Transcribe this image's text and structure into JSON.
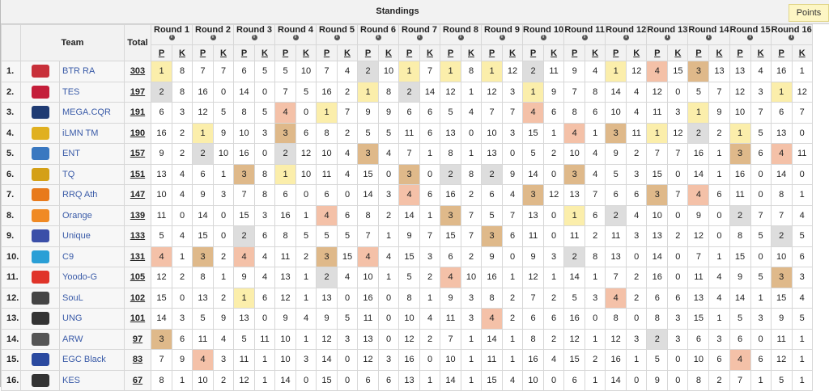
{
  "header": {
    "title": "Standings",
    "points_button": "Points"
  },
  "columns": {
    "team": "Team",
    "total": "Total",
    "p": "P",
    "k": "K",
    "info_icon": "i"
  },
  "rounds": [
    "Round 1",
    "Round 2",
    "Round 3",
    "Round 4",
    "Round 5",
    "Round 6",
    "Round 7",
    "Round 8",
    "Round 9",
    "Round 10",
    "Round 11",
    "Round 12",
    "Round 13",
    "Round 14",
    "Round 15",
    "Round 16"
  ],
  "place_colors": {
    "1": "#fbeeab",
    "2": "#dddddd",
    "3": "#dfb98a",
    "4": "#f4c1a8"
  },
  "teams": [
    {
      "rank": "1.",
      "name": "BTR RA",
      "logo": "btr-logo",
      "color": "#c8303a",
      "total": "303",
      "cells": [
        [
          1,
          8
        ],
        [
          7,
          7
        ],
        [
          6,
          5
        ],
        [
          5,
          10
        ],
        [
          7,
          4
        ],
        [
          2,
          10
        ],
        [
          1,
          7
        ],
        [
          1,
          8
        ],
        [
          1,
          12
        ],
        [
          2,
          11
        ],
        [
          9,
          4
        ],
        [
          1,
          12
        ],
        [
          4,
          15
        ],
        [
          3,
          13
        ],
        [
          13,
          4
        ],
        [
          16,
          1
        ]
      ]
    },
    {
      "rank": "2.",
      "name": "TES",
      "logo": "tes-logo",
      "color": "#c41e3a",
      "total": "197",
      "cells": [
        [
          2,
          8
        ],
        [
          16,
          0
        ],
        [
          14,
          0
        ],
        [
          7,
          5
        ],
        [
          16,
          2
        ],
        [
          1,
          8
        ],
        [
          2,
          14
        ],
        [
          12,
          1
        ],
        [
          12,
          3
        ],
        [
          1,
          9
        ],
        [
          7,
          8
        ],
        [
          14,
          4
        ],
        [
          12,
          0
        ],
        [
          5,
          7
        ],
        [
          12,
          3
        ],
        [
          1,
          12
        ]
      ]
    },
    {
      "rank": "3.",
      "name": "MEGA.CQR",
      "logo": "mega-logo",
      "color": "#1f3b73",
      "total": "191",
      "cells": [
        [
          6,
          3
        ],
        [
          12,
          5
        ],
        [
          8,
          5
        ],
        [
          4,
          0
        ],
        [
          1,
          7
        ],
        [
          9,
          9
        ],
        [
          6,
          6
        ],
        [
          5,
          4
        ],
        [
          7,
          7
        ],
        [
          4,
          6
        ],
        [
          8,
          6
        ],
        [
          10,
          4
        ],
        [
          11,
          3
        ],
        [
          1,
          9
        ],
        [
          10,
          7
        ],
        [
          6,
          7
        ]
      ]
    },
    {
      "rank": "4.",
      "name": "iLMN TM",
      "logo": "ilmn-logo",
      "color": "#e0b020",
      "total": "190",
      "cells": [
        [
          16,
          2
        ],
        [
          1,
          9
        ],
        [
          10,
          3
        ],
        [
          3,
          6
        ],
        [
          8,
          2
        ],
        [
          5,
          5
        ],
        [
          11,
          6
        ],
        [
          13,
          0
        ],
        [
          10,
          3
        ],
        [
          15,
          1
        ],
        [
          4,
          1
        ],
        [
          3,
          11
        ],
        [
          1,
          12
        ],
        [
          2,
          2
        ],
        [
          1,
          5
        ],
        [
          13,
          0
        ]
      ]
    },
    {
      "rank": "5.",
      "name": "ENT",
      "logo": "ent-logo",
      "color": "#3a78c0",
      "total": "157",
      "cells": [
        [
          9,
          2
        ],
        [
          2,
          10
        ],
        [
          16,
          0
        ],
        [
          2,
          12
        ],
        [
          10,
          4
        ],
        [
          3,
          4
        ],
        [
          7,
          1
        ],
        [
          8,
          1
        ],
        [
          13,
          0
        ],
        [
          5,
          2
        ],
        [
          10,
          4
        ],
        [
          9,
          2
        ],
        [
          7,
          7
        ],
        [
          16,
          1
        ],
        [
          3,
          6
        ],
        [
          4,
          11
        ]
      ]
    },
    {
      "rank": "6.",
      "name": "TQ",
      "logo": "tq-logo",
      "color": "#d4a017",
      "total": "151",
      "cells": [
        [
          13,
          4
        ],
        [
          6,
          1
        ],
        [
          3,
          8
        ],
        [
          1,
          10
        ],
        [
          11,
          4
        ],
        [
          15,
          0
        ],
        [
          3,
          0
        ],
        [
          2,
          8
        ],
        [
          2,
          9
        ],
        [
          14,
          0
        ],
        [
          3,
          4
        ],
        [
          5,
          3
        ],
        [
          15,
          0
        ],
        [
          14,
          1
        ],
        [
          16,
          0
        ],
        [
          14,
          0
        ]
      ]
    },
    {
      "rank": "7.",
      "name": "RRQ Ath",
      "logo": "rrq-logo",
      "color": "#e87a1c",
      "total": "147",
      "cells": [
        [
          10,
          4
        ],
        [
          9,
          3
        ],
        [
          7,
          8
        ],
        [
          6,
          0
        ],
        [
          6,
          0
        ],
        [
          14,
          3
        ],
        [
          4,
          6
        ],
        [
          16,
          2
        ],
        [
          6,
          4
        ],
        [
          3,
          12
        ],
        [
          13,
          7
        ],
        [
          6,
          6
        ],
        [
          3,
          7
        ],
        [
          4,
          6
        ],
        [
          11,
          0
        ],
        [
          8,
          1
        ]
      ]
    },
    {
      "rank": "8.",
      "name": "Orange",
      "logo": "orange-logo",
      "color": "#f08a24",
      "total": "139",
      "cells": [
        [
          11,
          0
        ],
        [
          14,
          0
        ],
        [
          15,
          3
        ],
        [
          16,
          1
        ],
        [
          4,
          6
        ],
        [
          8,
          2
        ],
        [
          14,
          1
        ],
        [
          3,
          7
        ],
        [
          5,
          7
        ],
        [
          13,
          0
        ],
        [
          1,
          6
        ],
        [
          2,
          4
        ],
        [
          10,
          0
        ],
        [
          9,
          0
        ],
        [
          2,
          7
        ],
        [
          7,
          4
        ]
      ]
    },
    {
      "rank": "9.",
      "name": "Unique",
      "logo": "unique-logo",
      "color": "#3b4fa8",
      "total": "133",
      "cells": [
        [
          5,
          4
        ],
        [
          15,
          0
        ],
        [
          2,
          6
        ],
        [
          8,
          5
        ],
        [
          5,
          5
        ],
        [
          7,
          1
        ],
        [
          9,
          7
        ],
        [
          15,
          7
        ],
        [
          3,
          6
        ],
        [
          11,
          0
        ],
        [
          11,
          2
        ],
        [
          11,
          3
        ],
        [
          13,
          2
        ],
        [
          12,
          0
        ],
        [
          8,
          5
        ],
        [
          2,
          5
        ]
      ]
    },
    {
      "rank": "10.",
      "name": "C9",
      "logo": "c9-logo",
      "color": "#2a9fd6",
      "total": "131",
      "cells": [
        [
          4,
          1
        ],
        [
          3,
          2
        ],
        [
          4,
          4
        ],
        [
          11,
          2
        ],
        [
          3,
          15
        ],
        [
          4,
          4
        ],
        [
          15,
          3
        ],
        [
          6,
          2
        ],
        [
          9,
          0
        ],
        [
          9,
          3
        ],
        [
          2,
          8
        ],
        [
          13,
          0
        ],
        [
          14,
          0
        ],
        [
          7,
          1
        ],
        [
          15,
          0
        ],
        [
          10,
          6
        ]
      ]
    },
    {
      "rank": "11.",
      "name": "Yoodo-G",
      "logo": "yoodo-logo",
      "color": "#e0342a",
      "total": "105",
      "cells": [
        [
          12,
          2
        ],
        [
          8,
          1
        ],
        [
          9,
          4
        ],
        [
          13,
          1
        ],
        [
          2,
          4
        ],
        [
          10,
          1
        ],
        [
          5,
          2
        ],
        [
          4,
          10
        ],
        [
          16,
          1
        ],
        [
          12,
          1
        ],
        [
          14,
          1
        ],
        [
          7,
          2
        ],
        [
          16,
          0
        ],
        [
          11,
          4
        ],
        [
          9,
          5
        ],
        [
          3,
          3
        ]
      ]
    },
    {
      "rank": "12.",
      "name": "SouL",
      "logo": "soul-logo",
      "color": "#444444",
      "total": "102",
      "cells": [
        [
          15,
          0
        ],
        [
          13,
          2
        ],
        [
          1,
          6
        ],
        [
          12,
          1
        ],
        [
          13,
          0
        ],
        [
          16,
          0
        ],
        [
          8,
          1
        ],
        [
          9,
          3
        ],
        [
          8,
          2
        ],
        [
          7,
          2
        ],
        [
          5,
          3
        ],
        [
          4,
          2
        ],
        [
          6,
          6
        ],
        [
          13,
          4
        ],
        [
          14,
          1
        ],
        [
          15,
          4
        ]
      ]
    },
    {
      "rank": "13.",
      "name": "UNG",
      "logo": "ung-logo",
      "color": "#333333",
      "total": "101",
      "cells": [
        [
          14,
          3
        ],
        [
          5,
          9
        ],
        [
          13,
          0
        ],
        [
          9,
          4
        ],
        [
          9,
          5
        ],
        [
          11,
          0
        ],
        [
          10,
          4
        ],
        [
          11,
          3
        ],
        [
          4,
          2
        ],
        [
          6,
          6
        ],
        [
          16,
          0
        ],
        [
          8,
          0
        ],
        [
          8,
          3
        ],
        [
          15,
          1
        ],
        [
          5,
          3
        ],
        [
          9,
          5
        ]
      ]
    },
    {
      "rank": "14.",
      "name": "ARW",
      "logo": "arw-logo",
      "color": "#555555",
      "total": "97",
      "cells": [
        [
          3,
          6
        ],
        [
          11,
          4
        ],
        [
          5,
          11
        ],
        [
          10,
          1
        ],
        [
          12,
          3
        ],
        [
          13,
          0
        ],
        [
          12,
          2
        ],
        [
          7,
          1
        ],
        [
          14,
          1
        ],
        [
          8,
          2
        ],
        [
          12,
          1
        ],
        [
          12,
          3
        ],
        [
          2,
          3
        ],
        [
          6,
          3
        ],
        [
          6,
          0
        ],
        [
          11,
          1
        ]
      ]
    },
    {
      "rank": "15.",
      "name": "EGC Black",
      "logo": "egc-logo",
      "color": "#2b4aa0",
      "total": "83",
      "cells": [
        [
          7,
          9
        ],
        [
          4,
          3
        ],
        [
          11,
          1
        ],
        [
          10,
          3
        ],
        [
          14,
          0
        ],
        [
          12,
          3
        ],
        [
          16,
          0
        ],
        [
          10,
          1
        ],
        [
          11,
          1
        ],
        [
          16,
          4
        ],
        [
          15,
          2
        ],
        [
          16,
          1
        ],
        [
          5,
          0
        ],
        [
          10,
          6
        ],
        [
          4,
          6
        ],
        [
          12,
          1
        ]
      ]
    },
    {
      "rank": "16.",
      "name": "KES",
      "logo": "kes-logo",
      "color": "#333333",
      "total": "67",
      "cells": [
        [
          8,
          1
        ],
        [
          10,
          2
        ],
        [
          12,
          1
        ],
        [
          14,
          0
        ],
        [
          15,
          0
        ],
        [
          6,
          6
        ],
        [
          13,
          1
        ],
        [
          14,
          1
        ],
        [
          15,
          4
        ],
        [
          10,
          0
        ],
        [
          6,
          1
        ],
        [
          14,
          0
        ],
        [
          9,
          0
        ],
        [
          8,
          2
        ],
        [
          7,
          1
        ],
        [
          5,
          1
        ]
      ]
    }
  ]
}
